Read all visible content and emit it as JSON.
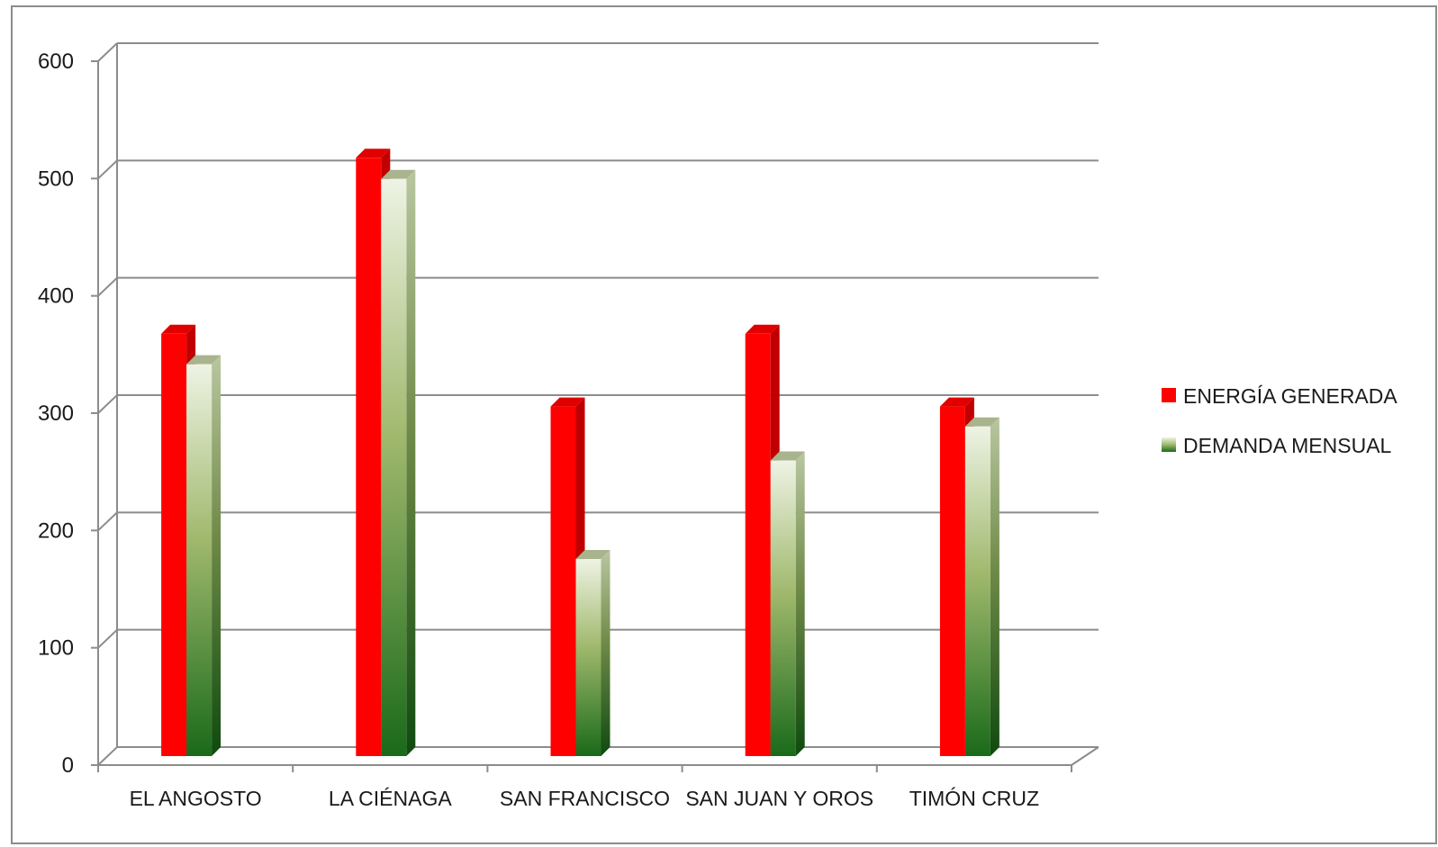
{
  "chart_data": {
    "type": "bar",
    "categories": [
      "EL ANGOSTO",
      "LA CIÉNAGA",
      "SAN FRANCISCO",
      "SAN JUAN Y OROS",
      "TIMÓN CRUZ"
    ],
    "series": [
      {
        "name": "ENERGÍA GENERADA",
        "values": [
          360,
          510,
          298,
          360,
          298
        ],
        "color": "#ff0000"
      },
      {
        "name": "DEMANDA MENSUAL",
        "values": [
          334,
          492,
          168,
          252,
          281
        ],
        "color_top": "#eef3e4",
        "color_mid": "#9fb86c",
        "color_bottom": "#1a6a1a"
      }
    ],
    "yticks": [
      0,
      100,
      200,
      300,
      400,
      500,
      600
    ],
    "ylim": [
      0,
      600
    ],
    "grid": true,
    "legend": "right",
    "style": "3d-clustered-column"
  }
}
